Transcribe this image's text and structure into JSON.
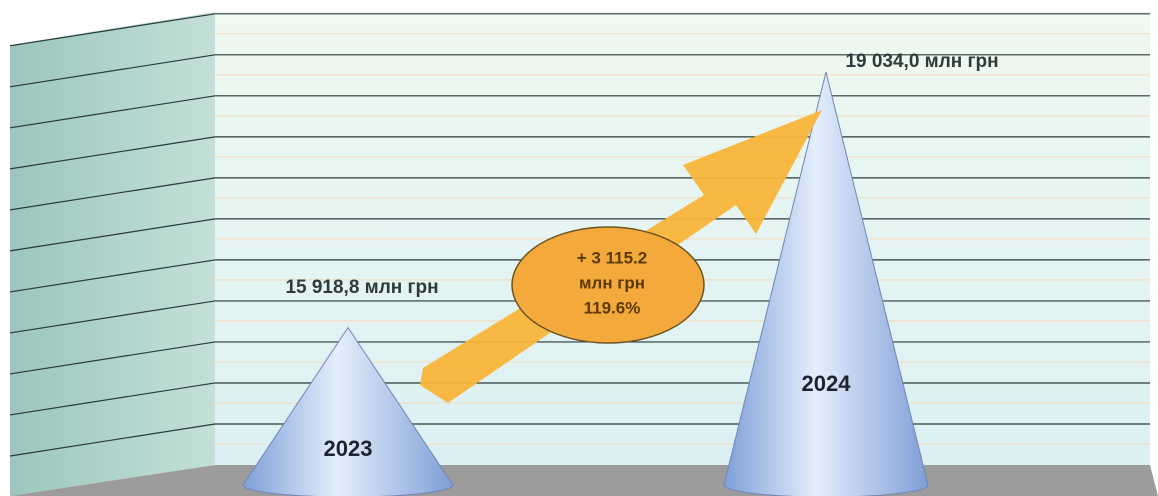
{
  "chart_data": {
    "type": "cone",
    "categories": [
      "2023",
      "2024"
    ],
    "values": [
      15918.8,
      19034.0
    ],
    "value_labels": [
      "15 918,8 млн грн",
      "19 034,0 млн грн"
    ],
    "annotation": [
      "+ 3 115.2",
      "млн грн",
      "119.6%"
    ],
    "ylim": [
      14000,
      19500
    ],
    "yticks": [
      14500,
      15000,
      15500,
      16000,
      16500,
      17000,
      17500,
      18000,
      18500,
      19000,
      19500
    ],
    "grid": true,
    "color": "#8fb0e6"
  }
}
